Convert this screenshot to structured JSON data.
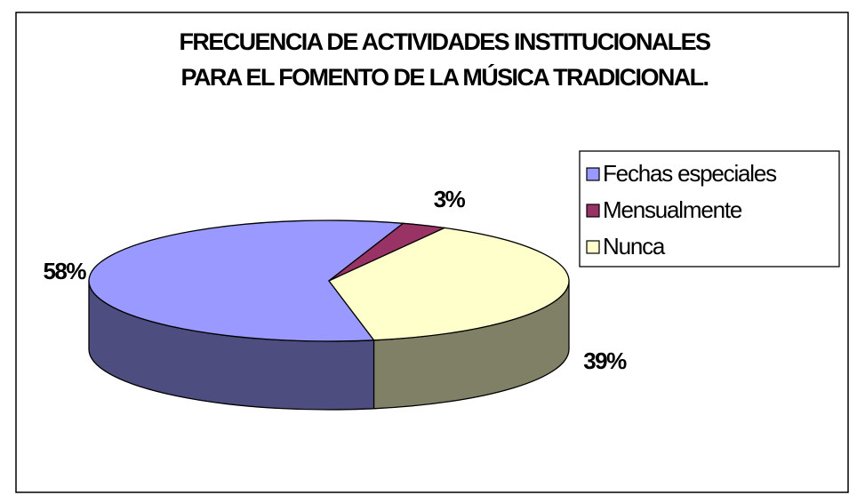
{
  "chart_data": {
    "type": "pie3d",
    "title": [
      "FRECUENCIA  DE ACTIVIDADES INSTITUCIONALES",
      "PARA EL FOMENTO DE LA MÚSICA TRADICIONAL."
    ],
    "categories": [
      "Fechas especiales",
      "Mensualmente",
      "Nunca"
    ],
    "values": [
      58,
      3,
      39
    ],
    "value_labels": [
      "58%",
      "3%",
      "39%"
    ],
    "colors": [
      "#9999ff",
      "#993366",
      "#ffffcc"
    ],
    "legend": "right"
  }
}
